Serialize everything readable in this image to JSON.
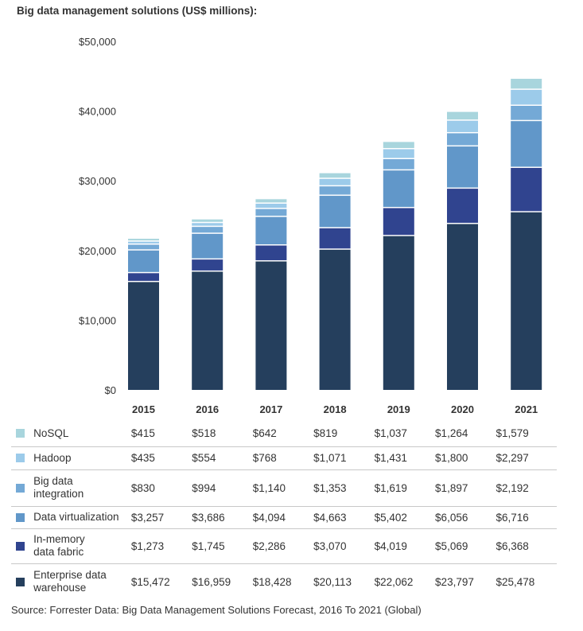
{
  "title": "Big data management solutions (US$ millions):",
  "source": "Source: Forrester Data: Big Data Management Solutions Forecast, 2016 To 2021 (Global)",
  "chart_data": {
    "type": "bar",
    "stacked": true,
    "title": "Big data management solutions (US$ millions):",
    "xlabel": "",
    "ylabel": "",
    "ylim": [
      0,
      50000
    ],
    "yticks": [
      0,
      10000,
      20000,
      30000,
      40000,
      50000
    ],
    "ytick_labels": [
      "$0",
      "$10,000",
      "$20,000",
      "$30,000",
      "$40,000",
      "$50,000"
    ],
    "grid": false,
    "legend": "bottom-table",
    "categories": [
      "2015",
      "2016",
      "2017",
      "2018",
      "2019",
      "2020",
      "2021"
    ],
    "series": [
      {
        "name": "Enterprise data warehouse",
        "name_lines": [
          "Enterprise data",
          "warehouse"
        ],
        "color": "#253f5d",
        "values": [
          15472,
          16959,
          18428,
          20113,
          22062,
          23797,
          25478
        ],
        "labels": [
          "$15,472",
          "$16,959",
          "$18,428",
          "$20,113",
          "$22,062",
          "$23,797",
          "$25,478"
        ]
      },
      {
        "name": "In-memory data fabric",
        "name_lines": [
          "In-memory",
          "data fabric"
        ],
        "color": "#30448f",
        "values": [
          1273,
          1745,
          2286,
          3070,
          4019,
          5069,
          6368
        ],
        "labels": [
          "$1,273",
          "$1,745",
          "$2,286",
          "$3,070",
          "$4,019",
          "$5,069",
          "$6,368"
        ]
      },
      {
        "name": "Data virtualization",
        "name_lines": [
          "Data virtualization"
        ],
        "color": "#6197c9",
        "values": [
          3257,
          3686,
          4094,
          4663,
          5402,
          6056,
          6716
        ],
        "labels": [
          "$3,257",
          "$3,686",
          "$4,094",
          "$4,663",
          "$5,402",
          "$6,056",
          "$6,716"
        ]
      },
      {
        "name": "Big data integration",
        "name_lines": [
          "Big data",
          "integration"
        ],
        "color": "#74a9d6",
        "values": [
          830,
          994,
          1140,
          1353,
          1619,
          1897,
          2192
        ],
        "labels": [
          "$830",
          "$994",
          "$1,140",
          "$1,353",
          "$1,619",
          "$1,897",
          "$2,192"
        ]
      },
      {
        "name": "Hadoop",
        "name_lines": [
          "Hadoop"
        ],
        "color": "#9ccbea",
        "values": [
          435,
          554,
          768,
          1071,
          1431,
          1800,
          2297
        ],
        "labels": [
          "$435",
          "$554",
          "$768",
          "$1,071",
          "$1,431",
          "$1,800",
          "$2,297"
        ]
      },
      {
        "name": "NoSQL",
        "name_lines": [
          "NoSQL"
        ],
        "color": "#a8d5dd",
        "values": [
          415,
          518,
          642,
          819,
          1037,
          1264,
          1579
        ],
        "labels": [
          "$415",
          "$518",
          "$642",
          "$819",
          "$1,037",
          "$1,264",
          "$1,579"
        ]
      }
    ]
  }
}
